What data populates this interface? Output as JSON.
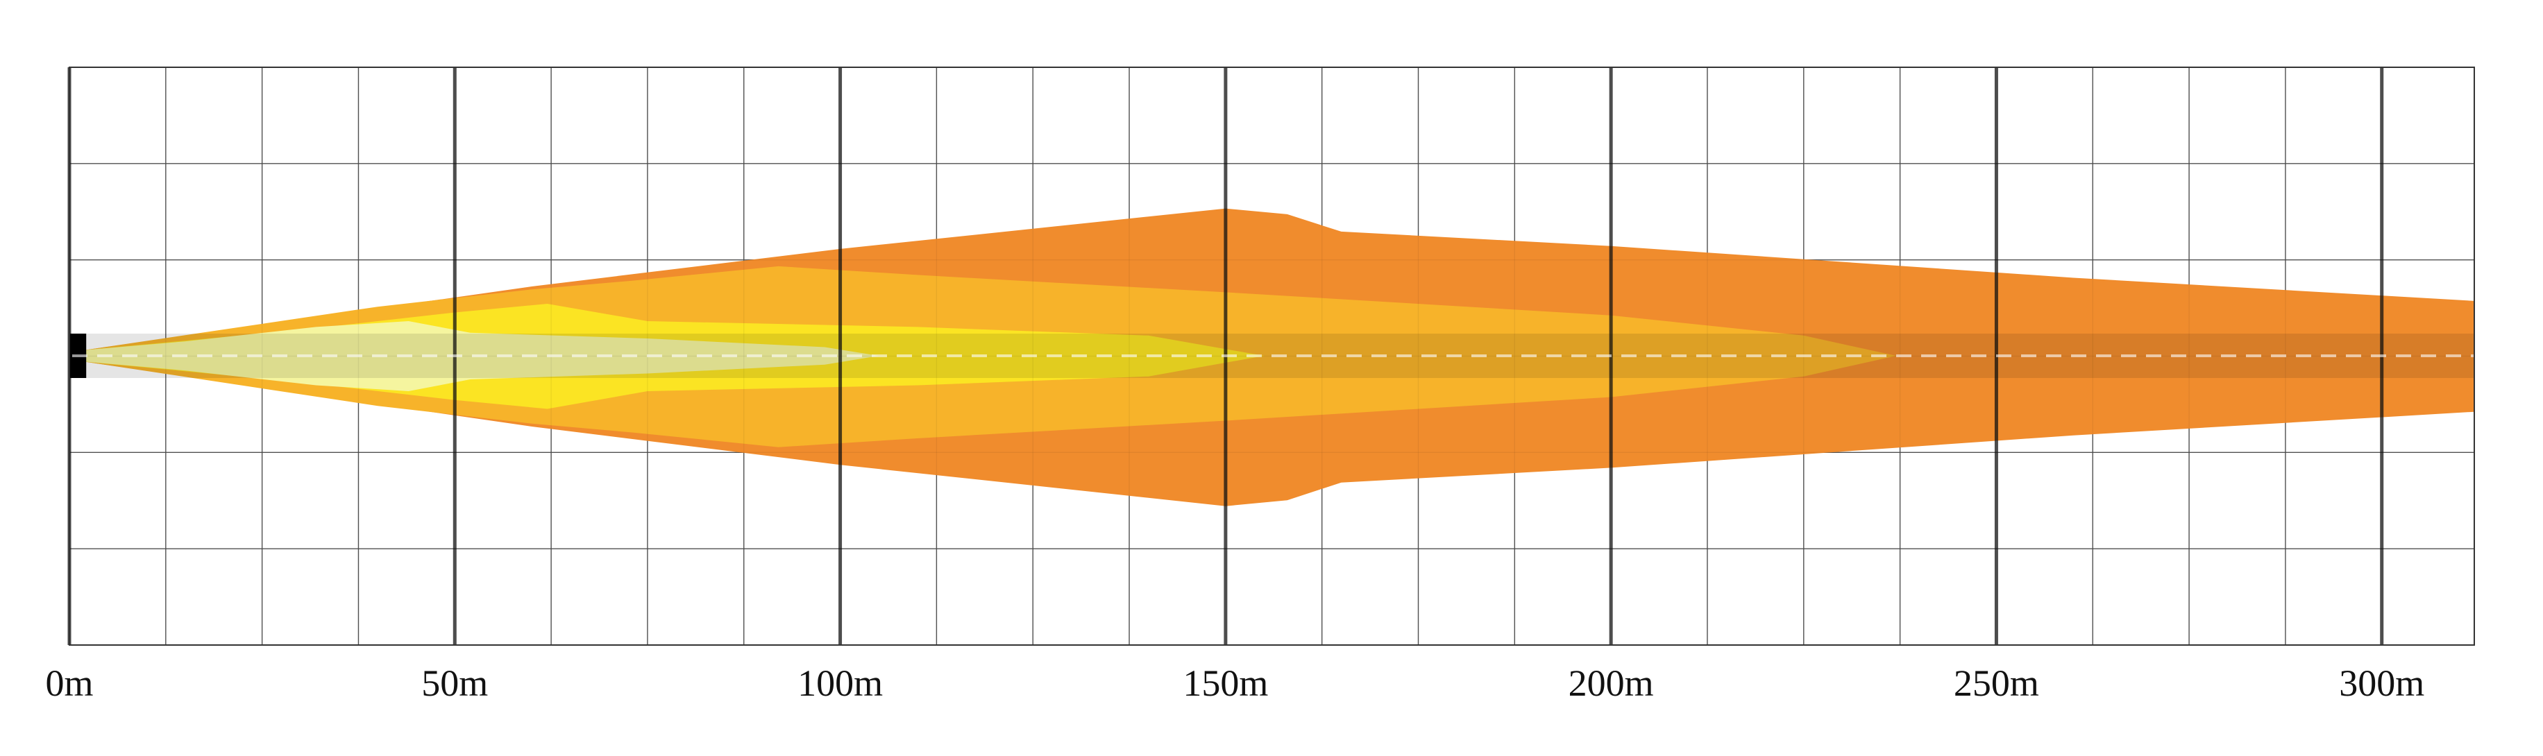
{
  "chart_data": {
    "type": "area",
    "title": "",
    "xlabel": "",
    "ylabel": "",
    "x_unit": "m",
    "xlim": [
      0,
      312
    ],
    "x_ticks": [
      {
        "value": 0,
        "label": "0m"
      },
      {
        "value": 50,
        "label": "50m"
      },
      {
        "value": 100,
        "label": "100m"
      },
      {
        "value": 150,
        "label": "150m"
      },
      {
        "value": 200,
        "label": "200m"
      },
      {
        "value": 250,
        "label": "250m"
      },
      {
        "value": 300,
        "label": "300m"
      }
    ],
    "grid": true,
    "minor_grid_step": 12.5,
    "lateral_rows": 6,
    "centerline_dashed": true,
    "zones": [
      {
        "key": "far",
        "color": "#f08c2d",
        "reach_m": 312
      },
      {
        "key": "mid",
        "color": "#f7b32a",
        "reach_m": 237
      },
      {
        "key": "near",
        "color": "#fbe423",
        "reach_m": 155
      },
      {
        "key": "close",
        "color": "#f5f59f",
        "reach_m": 105
      }
    ]
  }
}
